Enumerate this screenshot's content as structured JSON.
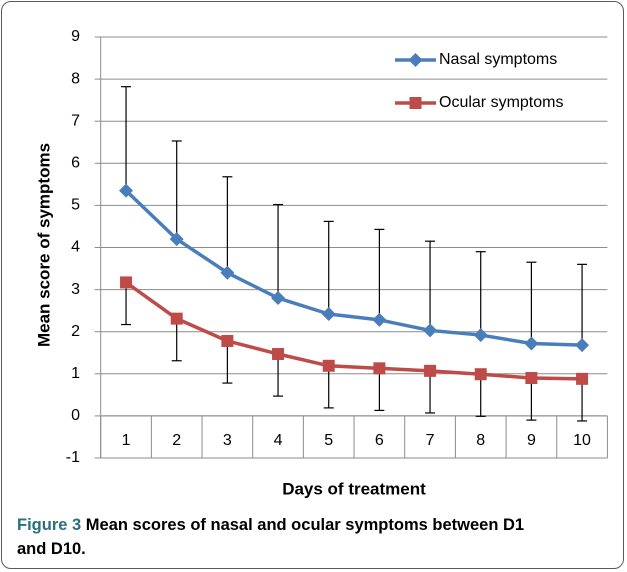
{
  "chart_data": {
    "type": "line",
    "xlabel": "Days of treatment",
    "ylabel": "Mean score of symptoms",
    "categories": [
      "1",
      "2",
      "3",
      "4",
      "5",
      "6",
      "7",
      "8",
      "9",
      "10"
    ],
    "series": [
      {
        "name": "Nasal symptoms",
        "color": "#4a7ebb",
        "marker": "diamond",
        "error_direction": "up",
        "values": [
          5.35,
          4.2,
          3.4,
          2.8,
          2.42,
          2.28,
          2.03,
          1.92,
          1.72,
          1.68
        ],
        "errors": [
          2.47,
          2.33,
          2.28,
          2.22,
          2.2,
          2.15,
          2.12,
          1.98,
          1.93,
          1.92
        ]
      },
      {
        "name": "Ocular symptoms",
        "color": "#be4b48",
        "marker": "square",
        "error_direction": "down",
        "values": [
          3.17,
          2.31,
          1.78,
          1.47,
          1.19,
          1.13,
          1.07,
          0.99,
          0.9,
          0.88
        ],
        "errors": [
          1.0,
          1.0,
          1.0,
          1.0,
          1.0,
          1.0,
          1.0,
          1.0,
          1.0,
          1.0
        ]
      }
    ],
    "ylim": [
      -1,
      9
    ],
    "yticks": [
      -1,
      0,
      1,
      2,
      3,
      4,
      5,
      6,
      7,
      8,
      9
    ],
    "grid": true,
    "legend": "top-right"
  },
  "caption": {
    "label": "Figure 3",
    "text": "Mean scores of nasal and ocular symptoms between D1 and D10."
  }
}
